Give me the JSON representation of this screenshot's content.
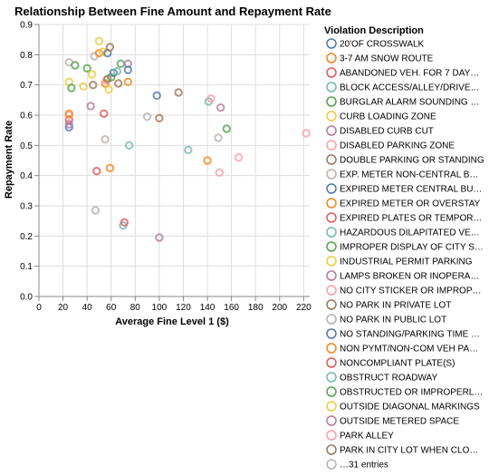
{
  "chart_data": {
    "type": "scatter",
    "title": "Relationship Between Fine Amount and Repayment Rate",
    "xlabel": "Average Fine Level 1 ($)",
    "ylabel": "Repayment Rate",
    "xlim": [
      0,
      225
    ],
    "ylim": [
      0,
      0.9
    ],
    "x_ticks": [
      0,
      20,
      40,
      60,
      80,
      100,
      120,
      140,
      160,
      180,
      200,
      220
    ],
    "y_ticks": [
      0.0,
      0.1,
      0.2,
      0.3,
      0.4,
      0.5,
      0.6,
      0.7,
      0.8,
      0.9
    ],
    "y_tick_labels": [
      "0.0",
      "0.1",
      "0.2",
      "0.3",
      "0.4",
      "0.5",
      "0.6",
      "0.7",
      "0.8",
      "0.9"
    ],
    "grid": true,
    "marker": "open-circle",
    "legend": {
      "title": "Violation Description",
      "placement": "right",
      "entries": [
        {
          "label": "20'OF CROSSWALK",
          "color": "#4c78a8"
        },
        {
          "label": "3-7 AM SNOW ROUTE",
          "color": "#f58518"
        },
        {
          "label": "ABANDONED VEH. FOR 7 DAY…",
          "color": "#e45756"
        },
        {
          "label": "BLOCK ACCESS/ALLEY/DRIVE…",
          "color": "#72b7b2"
        },
        {
          "label": "BURGLAR ALARM SOUNDING …",
          "color": "#54a24b"
        },
        {
          "label": "CURB LOADING ZONE",
          "color": "#eeca3b"
        },
        {
          "label": "DISABLED CURB CUT",
          "color": "#b279a2"
        },
        {
          "label": "DISABLED PARKING ZONE",
          "color": "#ff9da6"
        },
        {
          "label": "DOUBLE PARKING OR STANDING",
          "color": "#9d755d"
        },
        {
          "label": "EXP. METER NON-CENTRAL B…",
          "color": "#bab0ac"
        },
        {
          "label": "EXPIRED METER CENTRAL BU…",
          "color": "#4c78a8"
        },
        {
          "label": "EXPIRED METER OR OVERSTAY",
          "color": "#f58518"
        },
        {
          "label": "EXPIRED PLATES OR TEMPOR…",
          "color": "#e45756"
        },
        {
          "label": "HAZARDOUS DILAPITATED VE…",
          "color": "#72b7b2"
        },
        {
          "label": "IMPROPER DISPLAY OF CITY S…",
          "color": "#54a24b"
        },
        {
          "label": "INDUSTRIAL PERMIT PARKING",
          "color": "#eeca3b"
        },
        {
          "label": "LAMPS BROKEN OR INOPERA…",
          "color": "#b279a2"
        },
        {
          "label": "NO CITY STICKER OR IMPROP…",
          "color": "#ff9da6"
        },
        {
          "label": "NO PARK IN PRIVATE LOT",
          "color": "#9d755d"
        },
        {
          "label": "NO PARK IN PUBLIC LOT",
          "color": "#bab0ac"
        },
        {
          "label": "NO STANDING/PARKING TIME …",
          "color": "#4c78a8"
        },
        {
          "label": "NON PYMT/NON-COM VEH PA…",
          "color": "#f58518"
        },
        {
          "label": "NONCOMPLIANT PLATE(S)",
          "color": "#e45756"
        },
        {
          "label": "OBSTRUCT ROADWAY",
          "color": "#72b7b2"
        },
        {
          "label": "OBSTRUCTED OR IMPROPERL…",
          "color": "#54a24b"
        },
        {
          "label": "OUTSIDE DIAGONAL MARKINGS",
          "color": "#eeca3b"
        },
        {
          "label": "OUTSIDE METERED SPACE",
          "color": "#b279a2"
        },
        {
          "label": "PARK ALLEY",
          "color": "#ff9da6"
        },
        {
          "label": "PARK IN CITY LOT WHEN CLO…",
          "color": "#9d755d"
        },
        {
          "label": "…31 entries",
          "color": "#bab0ac"
        }
      ]
    },
    "points": [
      {
        "x": 25,
        "y": 0.56,
        "color": "#4c78a8"
      },
      {
        "x": 25,
        "y": 0.585,
        "color": "#e45756"
      },
      {
        "x": 25,
        "y": 0.6,
        "color": "#ff9da6"
      },
      {
        "x": 25,
        "y": 0.57,
        "color": "#b279a2"
      },
      {
        "x": 25,
        "y": 0.605,
        "color": "#f58518"
      },
      {
        "x": 25,
        "y": 0.775,
        "color": "#bab0ac"
      },
      {
        "x": 25,
        "y": 0.71,
        "color": "#eeca3b"
      },
      {
        "x": 27,
        "y": 0.69,
        "color": "#54a24b"
      },
      {
        "x": 30,
        "y": 0.765,
        "color": "#54a24b"
      },
      {
        "x": 37,
        "y": 0.695,
        "color": "#eeca3b"
      },
      {
        "x": 40,
        "y": 0.755,
        "color": "#54a24b"
      },
      {
        "x": 43,
        "y": 0.63,
        "color": "#b279a2"
      },
      {
        "x": 44,
        "y": 0.735,
        "color": "#eeca3b"
      },
      {
        "x": 45,
        "y": 0.7,
        "color": "#9d755d"
      },
      {
        "x": 46,
        "y": 0.795,
        "color": "#bab0ac"
      },
      {
        "x": 47,
        "y": 0.285,
        "color": "#bab0ac"
      },
      {
        "x": 48,
        "y": 0.415,
        "color": "#e45756"
      },
      {
        "x": 50,
        "y": 0.845,
        "color": "#eeca3b"
      },
      {
        "x": 50,
        "y": 0.805,
        "color": "#f58518"
      },
      {
        "x": 53,
        "y": 0.81,
        "color": "#eeca3b"
      },
      {
        "x": 54,
        "y": 0.605,
        "color": "#e45756"
      },
      {
        "x": 55,
        "y": 0.52,
        "color": "#bab0ac"
      },
      {
        "x": 55,
        "y": 0.705,
        "color": "#f58518"
      },
      {
        "x": 56,
        "y": 0.715,
        "color": "#ff9da6"
      },
      {
        "x": 57,
        "y": 0.72,
        "color": "#9d755d"
      },
      {
        "x": 57,
        "y": 0.805,
        "color": "#4c78a8"
      },
      {
        "x": 58,
        "y": 0.685,
        "color": "#eeca3b"
      },
      {
        "x": 59,
        "y": 0.425,
        "color": "#f58518"
      },
      {
        "x": 59,
        "y": 0.825,
        "color": "#9d755d"
      },
      {
        "x": 60,
        "y": 0.725,
        "color": "#54a24b"
      },
      {
        "x": 62,
        "y": 0.74,
        "color": "#4c78a8"
      },
      {
        "x": 65,
        "y": 0.745,
        "color": "#72b7b2"
      },
      {
        "x": 66,
        "y": 0.705,
        "color": "#9d755d"
      },
      {
        "x": 68,
        "y": 0.77,
        "color": "#54a24b"
      },
      {
        "x": 70,
        "y": 0.235,
        "color": "#72b7b2"
      },
      {
        "x": 71,
        "y": 0.245,
        "color": "#e45756"
      },
      {
        "x": 74,
        "y": 0.77,
        "color": "#b279a2"
      },
      {
        "x": 74,
        "y": 0.75,
        "color": "#4c78a8"
      },
      {
        "x": 74,
        "y": 0.71,
        "color": "#f58518"
      },
      {
        "x": 75,
        "y": 0.5,
        "color": "#72b7b2"
      },
      {
        "x": 90,
        "y": 0.595,
        "color": "#bab0ac"
      },
      {
        "x": 98,
        "y": 0.665,
        "color": "#4c78a8"
      },
      {
        "x": 100,
        "y": 0.59,
        "color": "#9d755d"
      },
      {
        "x": 100,
        "y": 0.195,
        "color": "#b279a2"
      },
      {
        "x": 124,
        "y": 0.485,
        "color": "#72b7b2"
      },
      {
        "x": 116,
        "y": 0.675,
        "color": "#9d755d"
      },
      {
        "x": 140,
        "y": 0.45,
        "color": "#f58518"
      },
      {
        "x": 141,
        "y": 0.645,
        "color": "#72b7b2"
      },
      {
        "x": 143,
        "y": 0.655,
        "color": "#ff9da6"
      },
      {
        "x": 149,
        "y": 0.525,
        "color": "#bab0ac"
      },
      {
        "x": 150,
        "y": 0.41,
        "color": "#ff9da6"
      },
      {
        "x": 151,
        "y": 0.625,
        "color": "#b279a2"
      },
      {
        "x": 156,
        "y": 0.555,
        "color": "#54a24b"
      },
      {
        "x": 166,
        "y": 0.46,
        "color": "#ff9da6"
      },
      {
        "x": 222,
        "y": 0.54,
        "color": "#ff9da6"
      }
    ]
  }
}
